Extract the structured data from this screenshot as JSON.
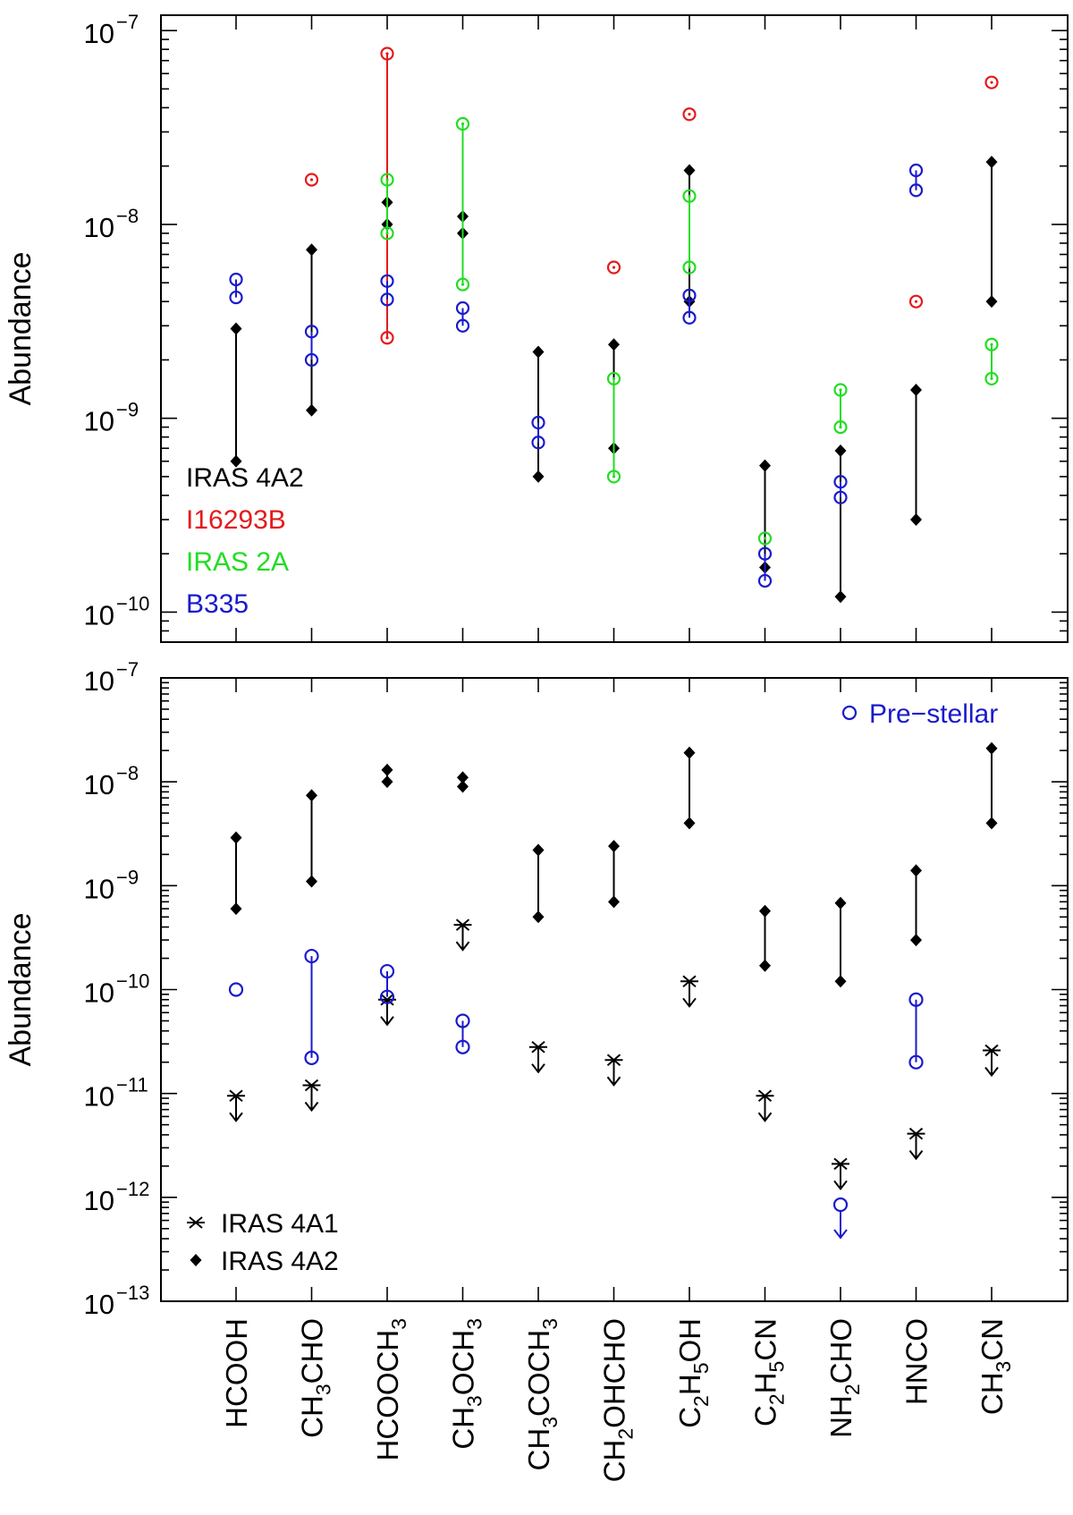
{
  "chart_data": [
    {
      "type": "scatter",
      "panel": "top",
      "ylabel": "Abundance",
      "yscale": "log",
      "ylim": [
        7e-11,
        1.2e-07
      ],
      "yticks": [
        {
          "value": 1e-10,
          "base": "10",
          "exp": "−10"
        },
        {
          "value": 1e-09,
          "base": "10",
          "exp": "−9"
        },
        {
          "value": 1e-08,
          "base": "10",
          "exp": "−8"
        },
        {
          "value": 1e-07,
          "base": "10",
          "exp": "−7"
        }
      ],
      "legend_position": "lower-left",
      "series": [
        {
          "name": "IRAS 4A2",
          "color": "#000000",
          "marker": "diamond",
          "ranges": [
            {
              "mol": 0,
              "lo": 6e-10,
              "hi": 2.9e-09
            },
            {
              "mol": 1,
              "lo": 1.1e-09,
              "hi": 7.4e-09
            },
            {
              "mol": 2,
              "lo": 1e-08,
              "hi": 1.3e-08
            },
            {
              "mol": 3,
              "lo": 9e-09,
              "hi": 1.1e-08
            },
            {
              "mol": 4,
              "lo": 5e-10,
              "hi": 2.2e-09
            },
            {
              "mol": 5,
              "lo": 7e-10,
              "hi": 2.4e-09
            },
            {
              "mol": 6,
              "lo": 4e-09,
              "hi": 1.9e-08
            },
            {
              "mol": 7,
              "lo": 1.7e-10,
              "hi": 5.7e-10
            },
            {
              "mol": 8,
              "lo": 1.2e-10,
              "hi": 6.8e-10
            },
            {
              "mol": 9,
              "lo": 3e-10,
              "hi": 1.4e-09
            },
            {
              "mol": 10,
              "lo": 4e-09,
              "hi": 2.1e-08
            }
          ]
        },
        {
          "name": "I16293B",
          "color": "#e41a1c",
          "marker": "circle-dot",
          "ranges": [
            {
              "mol": 1,
              "lo": 1.7e-08,
              "hi": 1.7e-08
            },
            {
              "mol": 2,
              "lo": 2.6e-09,
              "hi": 7.6e-08
            },
            {
              "mol": 5,
              "lo": 6e-09,
              "hi": 6e-09
            },
            {
              "mol": 6,
              "lo": 3.7e-08,
              "hi": 3.7e-08
            },
            {
              "mol": 9,
              "lo": 4e-09,
              "hi": 4e-09
            },
            {
              "mol": 10,
              "lo": 5.4e-08,
              "hi": 5.4e-08
            }
          ]
        },
        {
          "name": "IRAS 2A",
          "color": "#22dd22",
          "marker": "circle-dot",
          "ranges": [
            {
              "mol": 2,
              "lo": 9e-09,
              "hi": 1.7e-08
            },
            {
              "mol": 3,
              "lo": 4.9e-09,
              "hi": 3.3e-08
            },
            {
              "mol": 5,
              "lo": 5e-10,
              "hi": 1.6e-09
            },
            {
              "mol": 6,
              "lo": 6e-09,
              "hi": 1.4e-08
            },
            {
              "mol": 7,
              "lo": 2.4e-10,
              "hi": 2.4e-10
            },
            {
              "mol": 8,
              "lo": 9e-10,
              "hi": 1.4e-09
            },
            {
              "mol": 10,
              "lo": 1.6e-09,
              "hi": 2.4e-09
            }
          ]
        },
        {
          "name": "B335",
          "color": "#1a1acc",
          "marker": "circle",
          "ranges": [
            {
              "mol": 0,
              "lo": 4.2e-09,
              "hi": 5.2e-09
            },
            {
              "mol": 1,
              "lo": 2e-09,
              "hi": 2.8e-09
            },
            {
              "mol": 2,
              "lo": 4.1e-09,
              "hi": 5.1e-09
            },
            {
              "mol": 3,
              "lo": 3e-09,
              "hi": 3.7e-09
            },
            {
              "mol": 4,
              "lo": 7.5e-10,
              "hi": 9.5e-10
            },
            {
              "mol": 6,
              "lo": 3.3e-09,
              "hi": 4.3e-09
            },
            {
              "mol": 7,
              "lo": 1.45e-10,
              "hi": 2e-10
            },
            {
              "mol": 8,
              "lo": 3.9e-10,
              "hi": 4.7e-10
            },
            {
              "mol": 9,
              "lo": 1.5e-08,
              "hi": 1.9e-08
            }
          ]
        }
      ]
    },
    {
      "type": "scatter",
      "panel": "bottom",
      "ylabel": "Abundance",
      "yscale": "log",
      "ylim": [
        1e-13,
        1e-07
      ],
      "yticks": [
        {
          "value": 1e-13,
          "base": "10",
          "exp": "−13"
        },
        {
          "value": 1e-12,
          "base": "10",
          "exp": "−12"
        },
        {
          "value": 1e-11,
          "base": "10",
          "exp": "−11"
        },
        {
          "value": 1e-10,
          "base": "10",
          "exp": "−10"
        },
        {
          "value": 1e-09,
          "base": "10",
          "exp": "−9"
        },
        {
          "value": 1e-08,
          "base": "10",
          "exp": "−8"
        },
        {
          "value": 1e-07,
          "base": "10",
          "exp": "−7"
        }
      ],
      "legend": {
        "prestellar": "Pre−stellar",
        "items": [
          {
            "name": "IRAS 4A1",
            "marker": "upper-limit-star"
          },
          {
            "name": "IRAS 4A2",
            "marker": "diamond"
          }
        ]
      },
      "iras4a2": [
        {
          "mol": 0,
          "lo": 6e-10,
          "hi": 2.9e-09
        },
        {
          "mol": 1,
          "lo": 1.1e-09,
          "hi": 7.4e-09
        },
        {
          "mol": 2,
          "lo": 1e-08,
          "hi": 1.3e-08
        },
        {
          "mol": 3,
          "lo": 9e-09,
          "hi": 1.1e-08
        },
        {
          "mol": 4,
          "lo": 5e-10,
          "hi": 2.2e-09
        },
        {
          "mol": 5,
          "lo": 7e-10,
          "hi": 2.4e-09
        },
        {
          "mol": 6,
          "lo": 4e-09,
          "hi": 1.9e-08
        },
        {
          "mol": 7,
          "lo": 1.7e-10,
          "hi": 5.7e-10
        },
        {
          "mol": 8,
          "lo": 1.2e-10,
          "hi": 6.8e-10
        },
        {
          "mol": 9,
          "lo": 3e-10,
          "hi": 1.4e-09
        },
        {
          "mol": 10,
          "lo": 4e-09,
          "hi": 2.1e-08
        }
      ],
      "iras4a1_upper_limits": [
        9.5e-12,
        1.2e-11,
        8e-11,
        4.2e-10,
        2.8e-11,
        2.1e-11,
        1.2e-10,
        9.5e-12,
        2.1e-12,
        4.1e-12,
        2.6e-11
      ],
      "prestellar": [
        {
          "mol": 0,
          "lo": 1e-10,
          "hi": 1e-10
        },
        {
          "mol": 1,
          "lo": 2.2e-11,
          "hi": 2.1e-10
        },
        {
          "mol": 2,
          "lo": 8.5e-11,
          "hi": 1.5e-10
        },
        {
          "mol": 3,
          "lo": 2.8e-11,
          "hi": 5e-11
        },
        {
          "mol": 8,
          "lo": 8.5e-13,
          "hi": 8.5e-13,
          "upper_limit": true
        },
        {
          "mol": 9,
          "lo": 2e-11,
          "hi": 8e-11
        }
      ]
    }
  ],
  "molecules": [
    {
      "name": "HCOOH",
      "parts": [
        [
          "HCOOH",
          false
        ]
      ]
    },
    {
      "name": "CH3CHO",
      "parts": [
        [
          "CH",
          false
        ],
        [
          "3",
          true
        ],
        [
          "CHO",
          false
        ]
      ]
    },
    {
      "name": "HCOOCH3",
      "parts": [
        [
          "HCOOCH",
          false
        ],
        [
          "3",
          true
        ]
      ]
    },
    {
      "name": "CH3OCH3",
      "parts": [
        [
          "CH",
          false
        ],
        [
          "3",
          true
        ],
        [
          "OCH",
          false
        ],
        [
          "3",
          true
        ]
      ]
    },
    {
      "name": "CH3COCH3",
      "parts": [
        [
          "CH",
          false
        ],
        [
          "3",
          true
        ],
        [
          "COCH",
          false
        ],
        [
          "3",
          true
        ]
      ]
    },
    {
      "name": "CH2OHCHO",
      "parts": [
        [
          "CH",
          false
        ],
        [
          "2",
          true
        ],
        [
          "OHCHO",
          false
        ]
      ]
    },
    {
      "name": "C2H5OH",
      "parts": [
        [
          "C",
          false
        ],
        [
          "2",
          true
        ],
        [
          "H",
          false
        ],
        [
          "5",
          true
        ],
        [
          "OH",
          false
        ]
      ]
    },
    {
      "name": "C2H5CN",
      "parts": [
        [
          "C",
          false
        ],
        [
          "2",
          true
        ],
        [
          "H",
          false
        ],
        [
          "5",
          true
        ],
        [
          "CN",
          false
        ]
      ]
    },
    {
      "name": "NH2CHO",
      "parts": [
        [
          "NH",
          false
        ],
        [
          "2",
          true
        ],
        [
          "CHO",
          false
        ]
      ]
    },
    {
      "name": "HNCO",
      "parts": [
        [
          "HNCO",
          false
        ]
      ]
    },
    {
      "name": "CH3CN",
      "parts": [
        [
          "CH",
          false
        ],
        [
          "3",
          true
        ],
        [
          "CN",
          false
        ]
      ]
    }
  ]
}
